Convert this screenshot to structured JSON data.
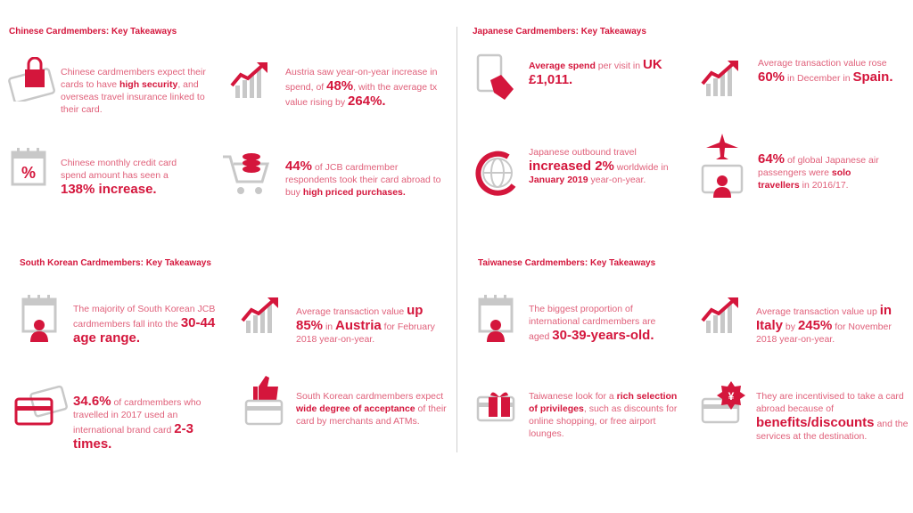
{
  "sections": [
    {
      "title": "Chinese Cardmembers: Key Takeaways",
      "items": [
        [
          {
            "text": "Chinese cardmembers expect their cards to have "
          },
          {
            "text": "high security",
            "bold": true
          },
          {
            "text": ", and overseas travel insurance linked to their card."
          }
        ],
        [
          {
            "text": "Austria saw year-on-year increase in spend, of "
          },
          {
            "text": "48%",
            "big": true
          },
          {
            "text": ", with the average tx value rising by "
          },
          {
            "text": "264%.",
            "big": true
          }
        ],
        [
          {
            "text": "Chinese monthly credit card spend amount has seen a "
          },
          {
            "text": "138% increase.",
            "big": true
          }
        ],
        [
          {
            "text": "44%",
            "big": true
          },
          {
            "text": " of JCB cardmember respondents took their card abroad to buy "
          },
          {
            "text": "high priced purchases.",
            "bold": true
          }
        ]
      ]
    },
    {
      "title": "Japanese Cardmembers: Key Takeaways",
      "items": [
        [
          {
            "text": "Average spend",
            "bold": true
          },
          {
            "text": " per visit in "
          },
          {
            "text": "UK £1,011.",
            "big": true
          }
        ],
        [
          {
            "text": "Average transaction value rose "
          },
          {
            "text": "60%",
            "big": true
          },
          {
            "text": " in December in "
          },
          {
            "text": "Spain.",
            "big": true
          }
        ],
        [
          {
            "text": "Japanese outbound travel "
          },
          {
            "text": "increased 2%",
            "big": true
          },
          {
            "text": " worldwide in "
          },
          {
            "text": "January 2019",
            "bold": true
          },
          {
            "text": " year-on-year."
          }
        ],
        [
          {
            "text": "64%",
            "big": true
          },
          {
            "text": " of global Japanese air passengers were "
          },
          {
            "text": "solo travellers",
            "bold": true
          },
          {
            "text": " in 2016/17."
          }
        ]
      ]
    },
    {
      "title": "South Korean Cardmembers: Key Takeaways",
      "items": [
        [
          {
            "text": "The majority of South Korean JCB cardmembers fall into the "
          },
          {
            "text": "30-44 age range.",
            "big": true
          }
        ],
        [
          {
            "text": "Average transaction value "
          },
          {
            "text": "up 85%",
            "big": true
          },
          {
            "text": " in "
          },
          {
            "text": "Austria",
            "big": true
          },
          {
            "text": " for February 2018 year-on-year."
          }
        ],
        [
          {
            "text": "34.6%",
            "big": true
          },
          {
            "text": " of cardmembers who travelled in 2017 used an international brand card "
          },
          {
            "text": "2-3 times.",
            "big": true
          }
        ],
        [
          {
            "text": "South Korean cardmembers expect "
          },
          {
            "text": "wide degree of acceptance",
            "bold": true
          },
          {
            "text": " of their card by merchants and ATMs."
          }
        ]
      ]
    },
    {
      "title": "Taiwanese Cardmembers: Key Takeaways",
      "items": [
        [
          {
            "text": "The biggest proportion of international cardmembers are aged "
          },
          {
            "text": "30-39-years-old.",
            "big": true
          }
        ],
        [
          {
            "text": "Average transaction value up "
          },
          {
            "text": "in Italy",
            "big": true
          },
          {
            "text": " by "
          },
          {
            "text": "245%",
            "big": true
          },
          {
            "text": " for November 2018 year-on-year."
          }
        ],
        [
          {
            "text": "Taiwanese look for a "
          },
          {
            "text": "rich selection of privileges",
            "bold": true
          },
          {
            "text": ", such as discounts for online shopping, or free airport lounges."
          }
        ],
        [
          {
            "text": "They are incentivised to take a card abroad because of "
          },
          {
            "text": "benefits/discounts",
            "big": true
          },
          {
            "text": " and the services at the destination."
          }
        ]
      ]
    }
  ]
}
